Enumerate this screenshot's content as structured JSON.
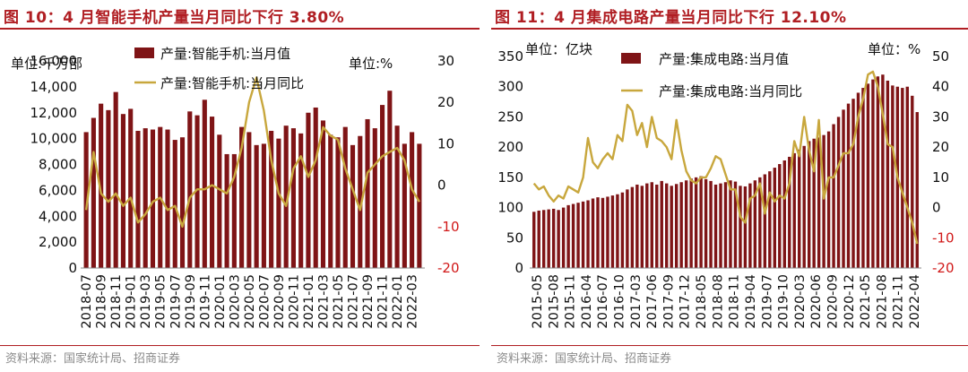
{
  "colors": {
    "bar": "#7f1416",
    "line": "#c8a73d",
    "title": "#b01e23",
    "rule": "#b01e23",
    "neg_tick": "#d11919",
    "source": "#8a8a8a"
  },
  "left": {
    "title": "图 10：4 月智能手机产量当月同比下行 3.80%",
    "source": "资料来源：国家统计局、招商证券",
    "y_left_unit": "单位:千万部",
    "y_right_unit": "单位:%",
    "legend": {
      "bar": "产量:智能手机:当月值",
      "line": "产量:智能手机:当月同比"
    }
  },
  "right": {
    "title": "图 11：4 月集成电路产量当月同比下行 12.10%",
    "source": "资料来源：国家统计局、招商证券",
    "y_left_unit": "单位：亿块",
    "y_right_unit": "单位：%",
    "legend": {
      "bar": "产量:集成电路:当月值",
      "line": "产量:集成电路:当月同比"
    }
  },
  "chart_data": [
    {
      "type": "bar",
      "title": "4 月智能手机产量当月同比下行 3.80%",
      "ylabel": "单位:千万部",
      "y2label": "单位:%",
      "ylim": [
        0,
        16000
      ],
      "y2lim": [
        -20,
        30
      ],
      "y_ticks": [
        "0",
        "2,000",
        "4,000",
        "6,000",
        "8,000",
        "10,000",
        "12,000",
        "14,000",
        "16,000"
      ],
      "y2_ticks": [
        "-20",
        "-10",
        "0",
        "10",
        "20",
        "30"
      ],
      "x_tick_labels": [
        "2018-07",
        "2018-09",
        "2018-11",
        "2019-01",
        "2019-03",
        "2019-05",
        "2019-07",
        "2019-09",
        "2019-11",
        "2020-01",
        "2020-03",
        "2020-05",
        "2020-07",
        "2020-09",
        "2020-11",
        "2021-01",
        "2021-03",
        "2021-05",
        "2021-07",
        "2021-09",
        "2021-11",
        "2022-01",
        "2022-03"
      ],
      "categories": [
        "2018-07",
        "2018-08",
        "2018-09",
        "2018-10",
        "2018-11",
        "2018-12",
        "2019-01",
        "2019-02",
        "2019-03",
        "2019-04",
        "2019-05",
        "2019-06",
        "2019-07",
        "2019-08",
        "2019-09",
        "2019-10",
        "2019-11",
        "2019-12",
        "2020-01",
        "2020-02",
        "2020-03",
        "2020-04",
        "2020-05",
        "2020-06",
        "2020-07",
        "2020-08",
        "2020-09",
        "2020-10",
        "2020-11",
        "2020-12",
        "2021-01",
        "2021-02",
        "2021-03",
        "2021-04",
        "2021-05",
        "2021-06",
        "2021-07",
        "2021-08",
        "2021-09",
        "2021-10",
        "2021-11",
        "2021-12",
        "2022-01",
        "2022-02",
        "2022-03",
        "2022-04"
      ],
      "series": [
        {
          "name": "产量:智能手机:当月值",
          "axis": "left",
          "type": "bar",
          "values": [
            10500,
            11600,
            12700,
            12200,
            13600,
            11900,
            12300,
            10600,
            10800,
            10700,
            10900,
            10700,
            9900,
            10100,
            12100,
            11800,
            13000,
            11700,
            10300,
            8800,
            8800,
            10900,
            10500,
            9500,
            9600,
            10600,
            10000,
            11000,
            10800,
            10400,
            12000,
            12400,
            11400,
            10300,
            10100,
            10900,
            9500,
            10200,
            11500,
            10800,
            12600,
            13700,
            11000,
            9600,
            10500,
            9600
          ]
        },
        {
          "name": "产量:智能手机:当月同比",
          "axis": "right",
          "type": "line",
          "values": [
            -6,
            8,
            -2,
            -4,
            -2,
            -5,
            -3,
            -9,
            -7,
            -4,
            -3,
            -6,
            -5,
            -10,
            -3,
            -1,
            -1,
            0,
            -1,
            -2,
            2,
            9,
            20,
            26,
            18,
            6,
            -2,
            -5,
            4,
            7,
            2,
            6,
            14,
            12,
            11,
            4,
            -1,
            -6,
            3,
            5,
            7,
            8,
            9,
            6,
            -1,
            -4
          ]
        }
      ]
    },
    {
      "type": "bar",
      "title": "4 月集成电路产量当月同比下行 12.10%",
      "ylabel": "单位：亿块",
      "y2label": "单位：%",
      "ylim": [
        0,
        350
      ],
      "y2lim": [
        -20,
        50
      ],
      "y_ticks": [
        "0",
        "50",
        "100",
        "150",
        "200",
        "250",
        "300",
        "350"
      ],
      "y2_ticks": [
        "-20",
        "-10",
        "0",
        "10",
        "20",
        "30",
        "40",
        "50"
      ],
      "x_tick_labels": [
        "2015-05",
        "2015-08",
        "2015-11",
        "2016-04",
        "2016-07",
        "2016-10",
        "2017-03",
        "2017-06",
        "2017-09",
        "2017-12",
        "2018-05",
        "2018-08",
        "2018-11",
        "2019-04",
        "2019-07",
        "2019-10",
        "2020-03",
        "2020-06",
        "2020-09",
        "2020-12",
        "2021-05",
        "2021-08",
        "2021-11",
        "2022-04"
      ],
      "series": [
        {
          "name": "产量:集成电路:当月值",
          "axis": "left",
          "type": "bar",
          "values": [
            93,
            95,
            96,
            97,
            98,
            96,
            100,
            104,
            106,
            108,
            110,
            112,
            115,
            117,
            116,
            118,
            120,
            122,
            125,
            130,
            134,
            138,
            136,
            140,
            142,
            138,
            144,
            140,
            136,
            139,
            142,
            145,
            148,
            150,
            152,
            147,
            144,
            138,
            140,
            142,
            145,
            143,
            136,
            135,
            140,
            145,
            150,
            155,
            160,
            166,
            172,
            178,
            184,
            190,
            196,
            202,
            210,
            214,
            216,
            220,
            226,
            238,
            250,
            262,
            272,
            280,
            290,
            298,
            305,
            312,
            317,
            320,
            310,
            302,
            300,
            298,
            300,
            285,
            258
          ]
        },
        {
          "name": "产量:集成电路:当月同比",
          "axis": "right",
          "type": "line",
          "values": [
            8,
            6,
            7,
            4,
            2,
            4,
            3,
            7,
            6,
            5,
            10,
            23,
            15,
            13,
            16,
            18,
            16,
            24,
            22,
            34,
            32,
            24,
            28,
            20,
            30,
            23,
            22,
            20,
            16,
            29,
            19,
            12,
            9,
            8,
            10,
            10,
            13,
            17,
            16,
            11,
            6,
            6,
            -3,
            -5,
            3,
            4,
            8,
            -2,
            5,
            2,
            4,
            3,
            8,
            22,
            17,
            30,
            19,
            12,
            29,
            3,
            10,
            10,
            14,
            18,
            18,
            21,
            30,
            36,
            44,
            45,
            40,
            31,
            21,
            20,
            10,
            5,
            0,
            -5,
            -12
          ]
        }
      ]
    }
  ]
}
